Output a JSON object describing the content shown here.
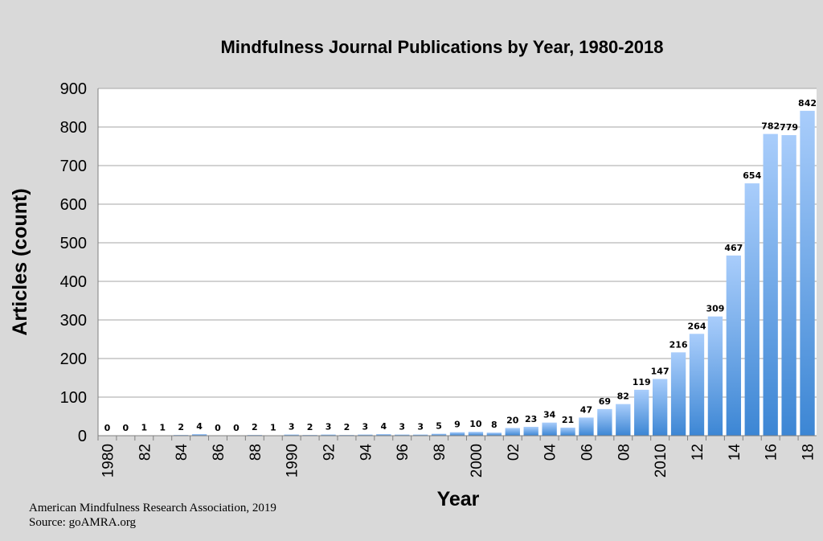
{
  "chart_data": {
    "type": "bar",
    "title": "Mindfulness Journal Publications by Year, 1980-2018",
    "xlabel": "Year",
    "ylabel": "Articles (count)",
    "ylim": [
      0,
      900
    ],
    "yticks": [
      0,
      100,
      200,
      300,
      400,
      500,
      600,
      700,
      800,
      900
    ],
    "grid": true,
    "categories": [
      "1980",
      "1981",
      "1982",
      "1983",
      "1984",
      "1985",
      "1986",
      "1987",
      "1988",
      "1989",
      "1990",
      "1991",
      "1992",
      "1993",
      "1994",
      "1995",
      "1996",
      "1997",
      "1998",
      "1999",
      "2000",
      "2001",
      "2002",
      "2003",
      "2004",
      "2005",
      "2006",
      "2007",
      "2008",
      "2009",
      "2010",
      "2011",
      "2012",
      "2013",
      "2014",
      "2015",
      "2016",
      "2017",
      "2018"
    ],
    "tick_labels": [
      "1980",
      "",
      "82",
      "",
      "84",
      "",
      "86",
      "",
      "88",
      "",
      "1990",
      "",
      "92",
      "",
      "94",
      "",
      "96",
      "",
      "98",
      "",
      "2000",
      "",
      "02",
      "",
      "04",
      "",
      "06",
      "",
      "08",
      "",
      "2010",
      "",
      "12",
      "",
      "14",
      "",
      "16",
      "",
      "18"
    ],
    "values": [
      0,
      0,
      1,
      1,
      2,
      4,
      0,
      0,
      2,
      1,
      3,
      2,
      3,
      2,
      3,
      4,
      3,
      3,
      5,
      9,
      10,
      8,
      20,
      23,
      34,
      21,
      47,
      69,
      82,
      119,
      147,
      216,
      264,
      309,
      467,
      654,
      782,
      779,
      842
    ],
    "bar_color_top": "#a9cdfb",
    "bar_color_bottom": "#3c86d4"
  },
  "credits": {
    "line1": "American Mindfulness Research Association, 2019",
    "line2": "Source: goAMRA.org"
  },
  "colors": {
    "background": "#d9d9d9",
    "plot_background": "#ffffff",
    "grid": "#a6a6a6"
  }
}
